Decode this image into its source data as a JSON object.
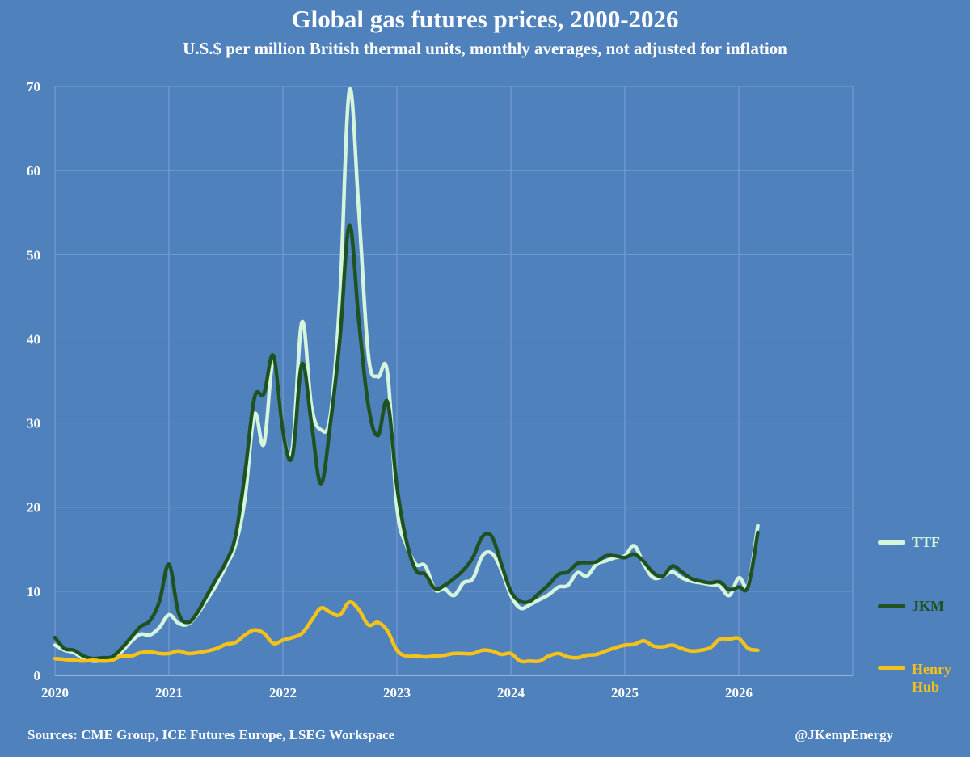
{
  "chart_data": {
    "type": "line",
    "title": "Global gas futures prices, 2000-2026",
    "subtitle": "U.S.$ per million British thermal units, monthly averages, not adjusted for inflation",
    "xlabel": "",
    "ylabel": "",
    "xlim": [
      2020,
      2027
    ],
    "ylim": [
      0,
      70
    ],
    "x_ticks": [
      2020,
      2021,
      2022,
      2023,
      2024,
      2025,
      2026
    ],
    "y_ticks": [
      0,
      10,
      20,
      30,
      40,
      50,
      60,
      70
    ],
    "grid": true,
    "legend_position": "right",
    "series": [
      {
        "name": "TTF",
        "color": "#d4f5dc",
        "points": [
          [
            2020.0,
            3.6
          ],
          [
            2020.083,
            3.0
          ],
          [
            2020.167,
            2.7
          ],
          [
            2020.25,
            2.0
          ],
          [
            2020.333,
            1.7
          ],
          [
            2020.417,
            1.8
          ],
          [
            2020.5,
            2.0
          ],
          [
            2020.583,
            2.8
          ],
          [
            2020.667,
            4.0
          ],
          [
            2020.75,
            4.9
          ],
          [
            2020.833,
            4.8
          ],
          [
            2020.917,
            5.7
          ],
          [
            2021.0,
            7.2
          ],
          [
            2021.083,
            6.2
          ],
          [
            2021.167,
            6.1
          ],
          [
            2021.25,
            7.3
          ],
          [
            2021.333,
            9.0
          ],
          [
            2021.417,
            10.8
          ],
          [
            2021.5,
            13.0
          ],
          [
            2021.583,
            15.5
          ],
          [
            2021.667,
            21.0
          ],
          [
            2021.75,
            31.0
          ],
          [
            2021.833,
            27.5
          ],
          [
            2021.917,
            37.5
          ],
          [
            2022.0,
            29.0
          ],
          [
            2022.083,
            27.0
          ],
          [
            2022.167,
            42.0
          ],
          [
            2022.25,
            32.0
          ],
          [
            2022.333,
            29.2
          ],
          [
            2022.417,
            31.0
          ],
          [
            2022.5,
            45.0
          ],
          [
            2022.583,
            69.5
          ],
          [
            2022.667,
            55.0
          ],
          [
            2022.75,
            38.0
          ],
          [
            2022.833,
            35.5
          ],
          [
            2022.917,
            36.0
          ],
          [
            2023.0,
            20.0
          ],
          [
            2023.083,
            15.5
          ],
          [
            2023.167,
            13.2
          ],
          [
            2023.25,
            13.0
          ],
          [
            2023.333,
            10.2
          ],
          [
            2023.417,
            10.3
          ],
          [
            2023.5,
            9.5
          ],
          [
            2023.583,
            11.0
          ],
          [
            2023.667,
            11.5
          ],
          [
            2023.75,
            14.2
          ],
          [
            2023.833,
            14.5
          ],
          [
            2023.917,
            12.5
          ],
          [
            2024.0,
            9.5
          ],
          [
            2024.083,
            8.0
          ],
          [
            2024.167,
            8.4
          ],
          [
            2024.25,
            9.0
          ],
          [
            2024.333,
            9.6
          ],
          [
            2024.417,
            10.5
          ],
          [
            2024.5,
            10.7
          ],
          [
            2024.583,
            12.2
          ],
          [
            2024.667,
            11.8
          ],
          [
            2024.75,
            13.2
          ],
          [
            2024.833,
            13.6
          ],
          [
            2024.917,
            14.0
          ],
          [
            2025.0,
            14.2
          ],
          [
            2025.083,
            15.4
          ],
          [
            2025.167,
            13.2
          ],
          [
            2025.25,
            11.6
          ],
          [
            2025.333,
            11.8
          ],
          [
            2025.417,
            12.3
          ],
          [
            2025.5,
            11.6
          ],
          [
            2025.583,
            11.2
          ],
          [
            2025.667,
            11.0
          ],
          [
            2025.75,
            10.8
          ],
          [
            2025.833,
            10.6
          ],
          [
            2025.917,
            9.5
          ],
          [
            2026.0,
            11.6
          ],
          [
            2026.083,
            10.8
          ],
          [
            2026.167,
            17.8
          ]
        ]
      },
      {
        "name": "JKM",
        "color": "#1e5220",
        "points": [
          [
            2020.0,
            4.5
          ],
          [
            2020.083,
            3.2
          ],
          [
            2020.167,
            3.0
          ],
          [
            2020.25,
            2.3
          ],
          [
            2020.333,
            2.0
          ],
          [
            2020.417,
            2.1
          ],
          [
            2020.5,
            2.2
          ],
          [
            2020.583,
            3.2
          ],
          [
            2020.667,
            4.5
          ],
          [
            2020.75,
            5.8
          ],
          [
            2020.833,
            6.5
          ],
          [
            2020.917,
            8.8
          ],
          [
            2021.0,
            13.2
          ],
          [
            2021.083,
            7.5
          ],
          [
            2021.167,
            6.3
          ],
          [
            2021.25,
            7.5
          ],
          [
            2021.333,
            9.5
          ],
          [
            2021.417,
            11.5
          ],
          [
            2021.5,
            13.5
          ],
          [
            2021.583,
            16.5
          ],
          [
            2021.667,
            24.0
          ],
          [
            2021.75,
            33.0
          ],
          [
            2021.833,
            33.5
          ],
          [
            2021.917,
            38.0
          ],
          [
            2022.0,
            29.0
          ],
          [
            2022.083,
            26.0
          ],
          [
            2022.167,
            37.0
          ],
          [
            2022.25,
            30.0
          ],
          [
            2022.333,
            22.8
          ],
          [
            2022.417,
            30.0
          ],
          [
            2022.5,
            40.0
          ],
          [
            2022.583,
            53.5
          ],
          [
            2022.667,
            42.0
          ],
          [
            2022.75,
            32.0
          ],
          [
            2022.833,
            28.5
          ],
          [
            2022.917,
            32.5
          ],
          [
            2023.0,
            22.5
          ],
          [
            2023.083,
            16.0
          ],
          [
            2023.167,
            12.5
          ],
          [
            2023.25,
            12.0
          ],
          [
            2023.333,
            10.3
          ],
          [
            2023.417,
            10.7
          ],
          [
            2023.5,
            11.5
          ],
          [
            2023.583,
            12.5
          ],
          [
            2023.667,
            14.0
          ],
          [
            2023.75,
            16.5
          ],
          [
            2023.833,
            16.5
          ],
          [
            2023.917,
            13.2
          ],
          [
            2024.0,
            10.0
          ],
          [
            2024.083,
            8.8
          ],
          [
            2024.167,
            8.8
          ],
          [
            2024.25,
            9.8
          ],
          [
            2024.333,
            10.8
          ],
          [
            2024.417,
            12.0
          ],
          [
            2024.5,
            12.3
          ],
          [
            2024.583,
            13.3
          ],
          [
            2024.667,
            13.4
          ],
          [
            2024.75,
            13.5
          ],
          [
            2024.833,
            14.2
          ],
          [
            2024.917,
            14.2
          ],
          [
            2025.0,
            14.0
          ],
          [
            2025.083,
            14.4
          ],
          [
            2025.167,
            13.5
          ],
          [
            2025.25,
            12.2
          ],
          [
            2025.333,
            11.8
          ],
          [
            2025.417,
            13.0
          ],
          [
            2025.5,
            12.3
          ],
          [
            2025.583,
            11.5
          ],
          [
            2025.667,
            11.2
          ],
          [
            2025.75,
            11.0
          ],
          [
            2025.833,
            11.1
          ],
          [
            2025.917,
            10.2
          ],
          [
            2026.0,
            10.5
          ],
          [
            2026.083,
            10.6
          ],
          [
            2026.167,
            17.0
          ]
        ]
      },
      {
        "name": "Henry Hub",
        "label_lines": [
          "Henry",
          "Hub"
        ],
        "color": "#f5c21a",
        "points": [
          [
            2020.0,
            2.0
          ],
          [
            2020.083,
            1.9
          ],
          [
            2020.167,
            1.8
          ],
          [
            2020.25,
            1.7
          ],
          [
            2020.333,
            1.8
          ],
          [
            2020.417,
            1.7
          ],
          [
            2020.5,
            1.8
          ],
          [
            2020.583,
            2.3
          ],
          [
            2020.667,
            2.3
          ],
          [
            2020.75,
            2.7
          ],
          [
            2020.833,
            2.8
          ],
          [
            2020.917,
            2.6
          ],
          [
            2021.0,
            2.6
          ],
          [
            2021.083,
            2.9
          ],
          [
            2021.167,
            2.6
          ],
          [
            2021.25,
            2.7
          ],
          [
            2021.333,
            2.9
          ],
          [
            2021.417,
            3.2
          ],
          [
            2021.5,
            3.7
          ],
          [
            2021.583,
            3.9
          ],
          [
            2021.667,
            4.8
          ],
          [
            2021.75,
            5.4
          ],
          [
            2021.833,
            5.0
          ],
          [
            2021.917,
            3.8
          ],
          [
            2022.0,
            4.2
          ],
          [
            2022.083,
            4.5
          ],
          [
            2022.167,
            5.0
          ],
          [
            2022.25,
            6.5
          ],
          [
            2022.333,
            8.0
          ],
          [
            2022.417,
            7.5
          ],
          [
            2022.5,
            7.2
          ],
          [
            2022.583,
            8.7
          ],
          [
            2022.667,
            7.8
          ],
          [
            2022.75,
            6.0
          ],
          [
            2022.833,
            6.3
          ],
          [
            2022.917,
            5.3
          ],
          [
            2023.0,
            3.0
          ],
          [
            2023.083,
            2.3
          ],
          [
            2023.167,
            2.3
          ],
          [
            2023.25,
            2.2
          ],
          [
            2023.333,
            2.3
          ],
          [
            2023.417,
            2.4
          ],
          [
            2023.5,
            2.6
          ],
          [
            2023.583,
            2.6
          ],
          [
            2023.667,
            2.6
          ],
          [
            2023.75,
            3.0
          ],
          [
            2023.833,
            2.9
          ],
          [
            2023.917,
            2.5
          ],
          [
            2024.0,
            2.6
          ],
          [
            2024.083,
            1.7
          ],
          [
            2024.167,
            1.7
          ],
          [
            2024.25,
            1.7
          ],
          [
            2024.333,
            2.3
          ],
          [
            2024.417,
            2.6
          ],
          [
            2024.5,
            2.2
          ],
          [
            2024.583,
            2.1
          ],
          [
            2024.667,
            2.4
          ],
          [
            2024.75,
            2.5
          ],
          [
            2024.833,
            2.9
          ],
          [
            2024.917,
            3.3
          ],
          [
            2025.0,
            3.6
          ],
          [
            2025.083,
            3.7
          ],
          [
            2025.167,
            4.1
          ],
          [
            2025.25,
            3.5
          ],
          [
            2025.333,
            3.4
          ],
          [
            2025.417,
            3.6
          ],
          [
            2025.5,
            3.2
          ],
          [
            2025.583,
            2.9
          ],
          [
            2025.667,
            3.0
          ],
          [
            2025.75,
            3.3
          ],
          [
            2025.833,
            4.3
          ],
          [
            2025.917,
            4.3
          ],
          [
            2026.0,
            4.4
          ],
          [
            2026.083,
            3.2
          ],
          [
            2026.167,
            3.0
          ]
        ]
      }
    ]
  },
  "sources": "Sources: CME Group, ICE Futures Europe, LSEG Workspace",
  "handle": "@JKempEnergy"
}
